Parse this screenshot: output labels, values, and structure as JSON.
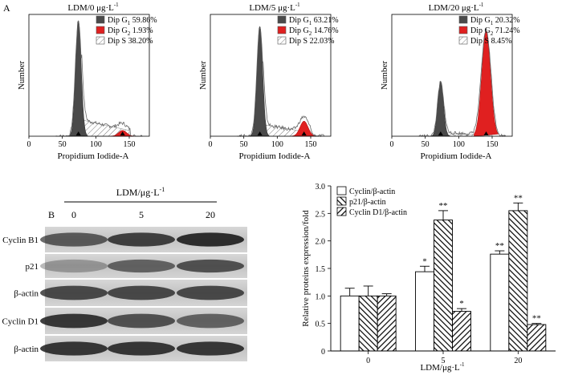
{
  "panel_labels": {
    "a": "A",
    "b": "B"
  },
  "histograms": [
    {
      "title": "LDM/0 μg·L",
      "title_sup": "-1",
      "xlabel": "Propidium Iodide-A",
      "ylabel": "Number",
      "xticks": [
        "0",
        "50",
        "100",
        "150"
      ],
      "legend": [
        {
          "label": "Dip G",
          "sub": "1",
          "value": " 59.86%",
          "swatch": "#4a4a4a"
        },
        {
          "label": "Dip G",
          "sub": "2",
          "value": " 1.93%",
          "swatch": "#e02020"
        },
        {
          "label": "Dip S",
          "sub": "",
          "value": " 38.20%",
          "swatch": "hatch"
        }
      ]
    },
    {
      "title": "LDM/5 μg·L",
      "title_sup": "-1",
      "xlabel": "Propidium Iodide-A",
      "ylabel": "Number",
      "xticks": [
        "0",
        "50",
        "100",
        "150"
      ],
      "legend": [
        {
          "label": "Dip G",
          "sub": "1",
          "value": " 63.21%",
          "swatch": "#4a4a4a"
        },
        {
          "label": "Dip G",
          "sub": "2",
          "value": " 14.76%",
          "swatch": "#e02020"
        },
        {
          "label": "Dip S",
          "sub": "",
          "value": " 22.03%",
          "swatch": "hatch"
        }
      ]
    },
    {
      "title": "LDM/20 μg·L",
      "title_sup": "-1",
      "xlabel": "Propidium Iodide-A",
      "ylabel": "Number",
      "xticks": [
        "0",
        "50",
        "100",
        "150"
      ],
      "legend": [
        {
          "label": "Dip G",
          "sub": "1",
          "value": " 20.32%",
          "swatch": "#4a4a4a"
        },
        {
          "label": "Dip G",
          "sub": "2",
          "value": " 71.24%",
          "swatch": "#e02020"
        },
        {
          "label": "Dip S",
          "sub": "",
          "value": " 8.45%",
          "swatch": "hatch"
        }
      ]
    }
  ],
  "western_blot": {
    "header": "LDM/μg·L",
    "header_sup": "-1",
    "doses": [
      "0",
      "5",
      "20"
    ],
    "rows": [
      "Cyclin B1",
      "p21",
      "β-actin",
      "Cyclin D1",
      "β-actin"
    ]
  },
  "chart_data": {
    "type": "bar",
    "categories": [
      "0",
      "5",
      "20"
    ],
    "xlabel": "LDM/μg·L",
    "xlabel_sup": "-1",
    "ylabel": "Relative proteins expression/fold",
    "ylim": [
      0,
      3.0
    ],
    "yticks": [
      "0",
      "0.5",
      "1.0",
      "1.5",
      "2.0",
      "2.5",
      "3.0"
    ],
    "series": [
      {
        "name": "Cyclin/β-actin",
        "values": [
          1.0,
          1.44,
          1.76
        ],
        "errors": [
          0.14,
          0.1,
          0.06
        ],
        "sig": [
          "",
          "*",
          "**"
        ]
      },
      {
        "name": "p21/β-actin",
        "values": [
          1.0,
          2.38,
          2.55
        ],
        "errors": [
          0.18,
          0.17,
          0.14
        ],
        "sig": [
          "",
          "**",
          "**"
        ]
      },
      {
        "name": "Cyclin D1/β-actin",
        "values": [
          1.0,
          0.72,
          0.48
        ],
        "errors": [
          0.04,
          0.05,
          0.02
        ],
        "sig": [
          "",
          "*",
          "**"
        ]
      }
    ]
  }
}
